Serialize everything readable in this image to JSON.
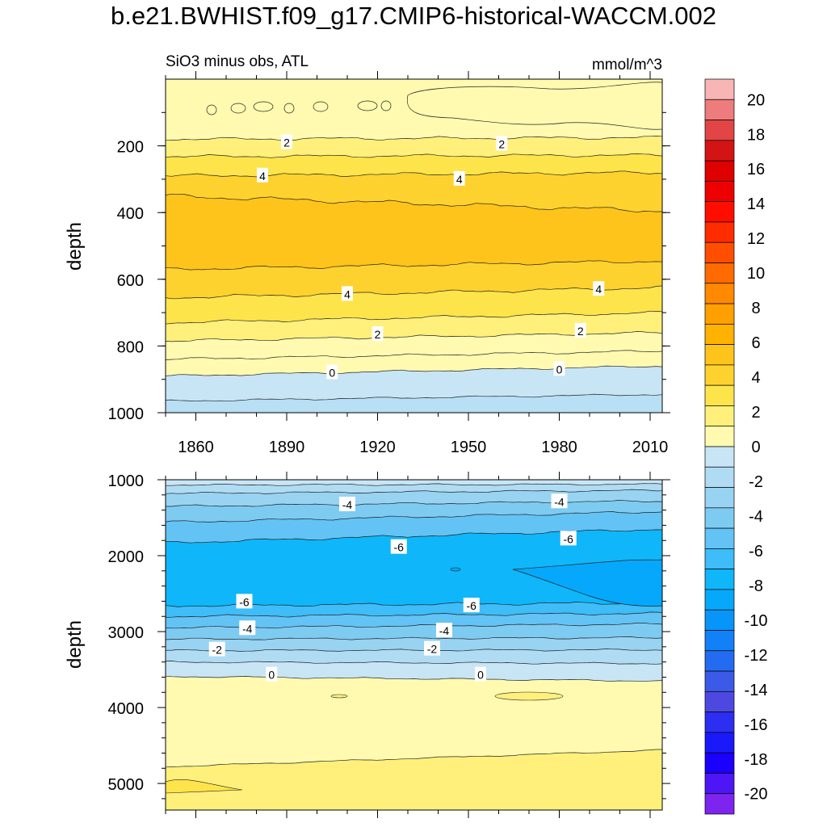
{
  "title": "b.e21.BWHIST.f09_g17.CMIP6-historical-WACCM.002",
  "chart_data": {
    "type": "contour",
    "panel_top": {
      "left_label": "SiO3 minus obs, ATL",
      "right_label": "mmol/m^3",
      "ylabel": "depth",
      "xlim": [
        1850,
        2014
      ],
      "ylim": [
        1000,
        0
      ],
      "xticks": [
        1860,
        1890,
        1920,
        1950,
        1980,
        2010
      ],
      "yticks": [
        200,
        400,
        600,
        800,
        1000
      ],
      "contour_labels": [
        {
          "text": "2",
          "x": 1890,
          "y": 190
        },
        {
          "text": "2",
          "x": 1961,
          "y": 195
        },
        {
          "text": "4",
          "x": 1882,
          "y": 290
        },
        {
          "text": "4",
          "x": 1947,
          "y": 300
        },
        {
          "text": "4",
          "x": 1910,
          "y": 645
        },
        {
          "text": "4",
          "x": 1993,
          "y": 630
        },
        {
          "text": "2",
          "x": 1920,
          "y": 765
        },
        {
          "text": "2",
          "x": 1987,
          "y": 755
        },
        {
          "text": "0",
          "x": 1905,
          "y": 880
        },
        {
          "text": "0",
          "x": 1980,
          "y": 870
        }
      ]
    },
    "panel_bottom": {
      "ylabel": "depth",
      "xlim": [
        1850,
        2014
      ],
      "ylim": [
        5350,
        1000
      ],
      "yticks": [
        1000,
        2000,
        3000,
        4000,
        5000
      ],
      "contour_labels": [
        {
          "text": "-4",
          "x": 1910,
          "y": 1330
        },
        {
          "text": "-4",
          "x": 1980,
          "y": 1290
        },
        {
          "text": "-6",
          "x": 1927,
          "y": 1890
        },
        {
          "text": "-6",
          "x": 1983,
          "y": 1780
        },
        {
          "text": "-6",
          "x": 1876,
          "y": 2610
        },
        {
          "text": "-6",
          "x": 1951,
          "y": 2660
        },
        {
          "text": "-4",
          "x": 1877,
          "y": 2960
        },
        {
          "text": "-4",
          "x": 1942,
          "y": 2990
        },
        {
          "text": "-2",
          "x": 1867,
          "y": 3240
        },
        {
          "text": "-2",
          "x": 1938,
          "y": 3230
        },
        {
          "text": "0",
          "x": 1885,
          "y": 3570
        },
        {
          "text": "0",
          "x": 1954,
          "y": 3570
        }
      ]
    },
    "colorbar": {
      "labels": [
        "20",
        "18",
        "16",
        "14",
        "12",
        "10",
        "8",
        "6",
        "4",
        "2",
        "0",
        "-2",
        "-4",
        "-6",
        "-8",
        "-10",
        "-12",
        "-14",
        "-16",
        "-18",
        "-20"
      ],
      "colors_top_to_bottom": [
        "#f8b5b5",
        "#ef7c7c",
        "#e24545",
        "#d41414",
        "#df0000",
        "#ef0000",
        "#ff0e00",
        "#ff2c00",
        "#ff4e00",
        "#ff6b00",
        "#ff8900",
        "#ffa000",
        "#ffb200",
        "#fec41b",
        "#fed22e",
        "#fee44b",
        "#fef07b",
        "#fffab0",
        "#c7e5f5",
        "#b0dcf3",
        "#98d3f2",
        "#7ecbf2",
        "#63c3f5",
        "#3ebdf8",
        "#0fb6fa",
        "#06a8fb",
        "#0795fa",
        "#1280f6",
        "#236cf2",
        "#3b5ae8",
        "#4d49e0",
        "#2c2ef2",
        "#1919fa",
        "#1b00fb",
        "#4e16f5",
        "#7d24ef"
      ]
    },
    "fill_colors": {
      "zero_to_2": "#fffab0",
      "two_to_4": "#fef07b",
      "four_to_6": "#fee44b",
      "six_to_8": "#fed22e",
      "eight_to_10": "#fec41b",
      "neg0_to_neg2": "#c7e5f5",
      "neg2_to_neg4": "#98d3f2",
      "neg4_to_neg6": "#63c3f5",
      "neg6_to_neg8": "#0fb6fa",
      "neg8_to_neg10": "#06a8fb"
    }
  }
}
